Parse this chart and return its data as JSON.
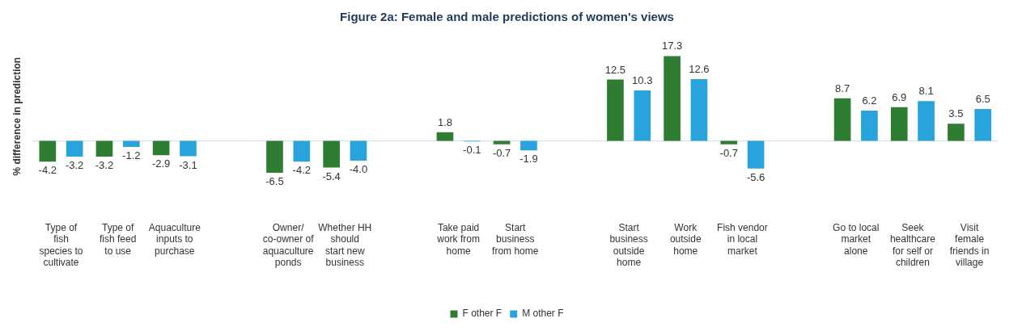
{
  "chart_data": {
    "type": "bar",
    "title": "Figure 2a: Female and male predictions of women's views",
    "ylabel": "% difference in prediction",
    "categories": [
      "Type of fish species to cultivate",
      "Type of fish feed to use",
      "Aquaculture inputs to purchase",
      null,
      "Owner/ co-owner of aquaculture ponds",
      "Whether HH should start new business",
      null,
      "Take paid work from home",
      "Start business from home",
      null,
      "Start business outside home",
      "Work outside home",
      "Fish vendor in local market",
      null,
      "Go to local market alone",
      "Seek healthcare for self or children",
      "Visit female friends in village"
    ],
    "series": [
      {
        "name": "F other F",
        "color": "#2e7d32",
        "values": [
          -4.2,
          -3.2,
          -2.9,
          null,
          -6.5,
          -5.4,
          null,
          1.8,
          -0.7,
          null,
          12.5,
          17.3,
          -0.7,
          null,
          8.7,
          6.9,
          3.5
        ],
        "value_labels": [
          "-4.2",
          "-3.2",
          "-2.9",
          null,
          "-6.5",
          "-5.4",
          null,
          "1.8",
          "-0.7",
          null,
          "12.5",
          "17.3",
          "-0.7",
          null,
          "8.7",
          "6.9",
          "3.5"
        ]
      },
      {
        "name": "M other F",
        "color": "#29a3dc",
        "values": [
          -3.2,
          -1.2,
          -3.1,
          null,
          -4.2,
          -4.0,
          null,
          -0.1,
          -1.9,
          null,
          10.3,
          12.6,
          -5.6,
          null,
          6.2,
          8.1,
          6.5
        ],
        "value_labels": [
          "-3.2",
          "-1.2",
          "-3.1",
          null,
          "-4.2",
          "-4.0",
          null,
          "-0.1",
          "-1.9",
          null,
          "10.3",
          "12.6",
          "-5.6",
          null,
          "6.2",
          "8.1",
          "6.5"
        ]
      }
    ],
    "tick_labels": "x",
    "grid": false,
    "legend": "bottom"
  }
}
